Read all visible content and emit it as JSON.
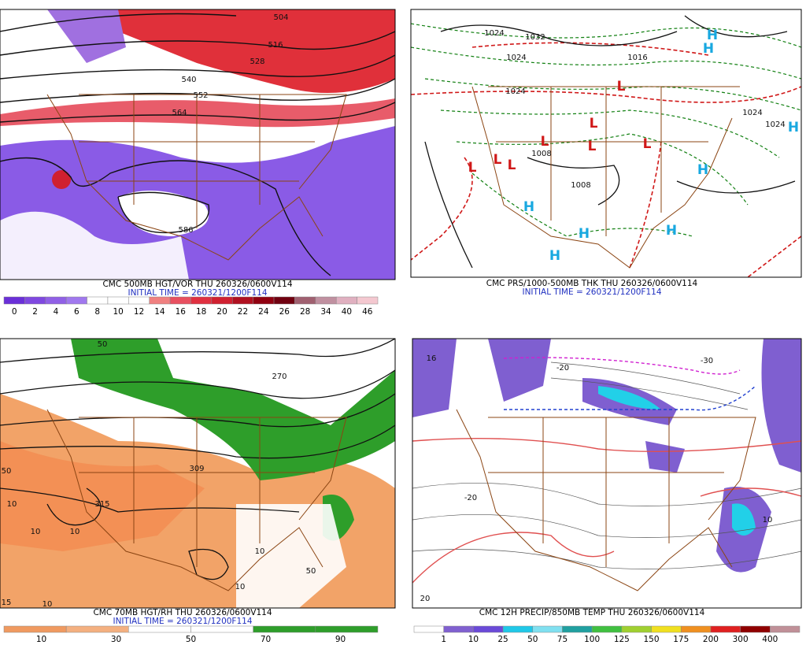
{
  "panels": [
    {
      "title": "CMC 500MB HGT/VOR THU 260326/0600V114",
      "subtitle": "INITIAL TIME = 260321/1200F114",
      "colorbar": [
        "0",
        "2",
        "4",
        "6",
        "8",
        "10",
        "12",
        "14",
        "16",
        "18",
        "20",
        "22",
        "24",
        "26",
        "28",
        "34",
        "40",
        "46"
      ],
      "labels": [
        "504",
        "516",
        "528",
        "540",
        "552",
        "564",
        "586"
      ]
    },
    {
      "title": "CMC PRS/1000-500MB THK THU 260326/0600V114",
      "subtitle": "INITIAL TIME = 260321/1200F114",
      "labels": [
        "1024",
        "1032",
        "1024",
        "1016",
        "1024",
        "1024",
        "1024",
        "1008",
        "1008",
        "H",
        "H",
        "H",
        "H",
        "H",
        "H",
        "H",
        "H",
        "L",
        "L",
        "L",
        "L",
        "L",
        "L",
        "L",
        "L"
      ]
    },
    {
      "title": "CMC 70MB HGT/RH THU 260326/0600V114",
      "subtitle": "INITIAL TIME = 260321/1200F114",
      "colorbar": [
        "10",
        "30",
        "50",
        "70",
        "90"
      ],
      "labels": [
        "50",
        "270",
        "309",
        "50",
        "315",
        "10",
        "10",
        "10",
        "10",
        "50",
        "10",
        "15",
        "10"
      ]
    },
    {
      "title": "CMC 12H PRECIP/850MB TEMP THU 260326/0600V114",
      "colorbar": [
        "1",
        "10",
        "25",
        "50",
        "75",
        "100",
        "125",
        "150",
        "175",
        "200",
        "300",
        "400"
      ],
      "labels": [
        "-30",
        "-20",
        "16",
        "-20",
        "10",
        "20"
      ]
    }
  ]
}
